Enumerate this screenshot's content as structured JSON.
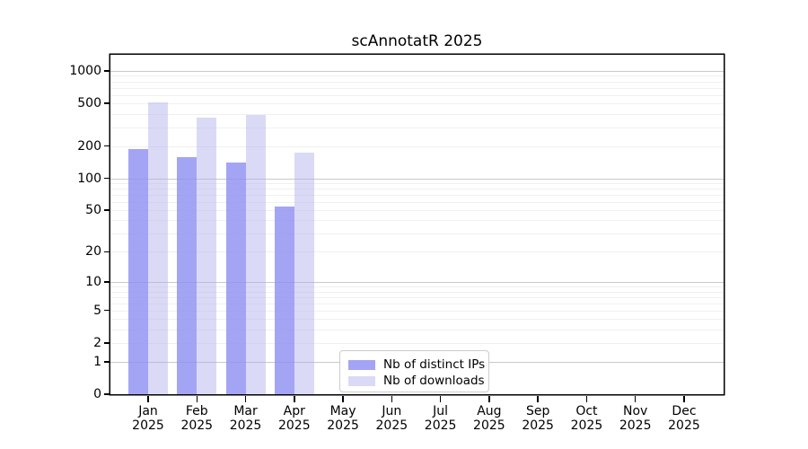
{
  "chart_data": {
    "type": "bar",
    "title": "scAnnotatR 2025",
    "categories": [
      "Jan 2025",
      "Feb 2025",
      "Mar 2025",
      "Apr 2025",
      "May 2025",
      "Jun 2025",
      "Jul 2025",
      "Aug 2025",
      "Sep 2025",
      "Oct 2025",
      "Nov 2025",
      "Dec 2025"
    ],
    "x_months": [
      "Jan",
      "Feb",
      "Mar",
      "Apr",
      "May",
      "Jun",
      "Jul",
      "Aug",
      "Sep",
      "Oct",
      "Nov",
      "Dec"
    ],
    "x_year": "2025",
    "series": [
      {
        "name": "Nb of distinct IPs",
        "color": "rgba(144,144,243,0.82)",
        "values": [
          186,
          157,
          140,
          54,
          null,
          null,
          null,
          null,
          null,
          null,
          null,
          null
        ]
      },
      {
        "name": "Nb of downloads",
        "color": "rgba(173,173,235,0.45)",
        "values": [
          510,
          371,
          392,
          172,
          null,
          null,
          null,
          null,
          null,
          null,
          null,
          null
        ]
      }
    ],
    "yscale": "log1p",
    "yticks": [
      0,
      1,
      2,
      5,
      10,
      20,
      50,
      100,
      200,
      500,
      1000
    ],
    "ytick_labels": [
      "0",
      "1",
      "2",
      "5",
      "10",
      "20",
      "50",
      "100",
      "200",
      "500",
      "1000"
    ],
    "grid_major_at": [
      1,
      10,
      100,
      1000
    ],
    "grid_minor_at": [
      2,
      3,
      4,
      5,
      6,
      7,
      8,
      9,
      20,
      30,
      40,
      50,
      60,
      70,
      80,
      90,
      200,
      300,
      400,
      500,
      600,
      700,
      800,
      900
    ],
    "ylim": [
      0,
      1400
    ],
    "grid": "on",
    "xlabel": "",
    "ylabel": "",
    "legend_position": "bottom-center"
  }
}
